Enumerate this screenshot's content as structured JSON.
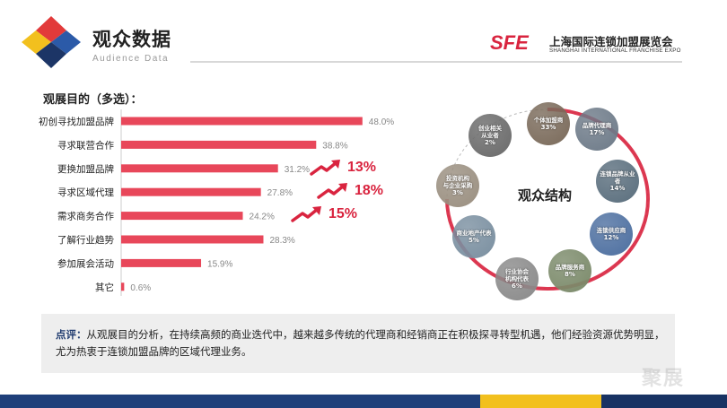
{
  "header": {
    "title": "观众数据",
    "subtitle": "Audience Data"
  },
  "brand": {
    "mark": "SFE",
    "name_cn": "上海国际连锁加盟展览会",
    "name_en": "SHANGHAI INTERNATIONAL FRANCHISE EXPO"
  },
  "colors": {
    "bar": "#e8475a",
    "accent_red": "#d9243f",
    "logo_red": "#e23a3a",
    "logo_yellow": "#f2c01e",
    "logo_blue": "#2b5aa8",
    "logo_navy": "#1c3566",
    "ring": "#d9243f",
    "footer_blue": "#1f3f7a",
    "footer_yellow": "#f2c01e",
    "footer_navy": "#183263"
  },
  "chart_data": {
    "type": "bar",
    "orientation": "horizontal",
    "title": "观展目的（多选）：",
    "categories": [
      "初创寻找加盟品牌",
      "寻求联营合作",
      "更换加盟品牌",
      "寻求区域代理",
      "需求商务合作",
      "了解行业趋势",
      "参加展会活动",
      "其它"
    ],
    "values": [
      48.0,
      38.8,
      31.2,
      27.8,
      24.2,
      28.3,
      15.9,
      0.6
    ],
    "value_labels": [
      "48.0%",
      "38.8%",
      "31.2%",
      "27.8%",
      "24.2%",
      "28.3%",
      "15.9%",
      "0.6%"
    ],
    "xlim": [
      0,
      50
    ],
    "grid": false,
    "annotations": [
      {
        "category": "更换加盟品牌",
        "text": "13%"
      },
      {
        "category": "寻求区域代理",
        "text": "18%"
      },
      {
        "category": "需求商务合作",
        "text": "15%"
      }
    ]
  },
  "diagram": {
    "center_label": "观众结构",
    "nodes": [
      {
        "lines": [
          "个体加盟商"
        ],
        "pct": "33%"
      },
      {
        "lines": [
          "品牌代理商"
        ],
        "pct": "17%"
      },
      {
        "lines": [
          "连锁品牌从业者"
        ],
        "pct": "14%"
      },
      {
        "lines": [
          "连锁供应商"
        ],
        "pct": "12%"
      },
      {
        "lines": [
          "品牌服务商"
        ],
        "pct": "8%"
      },
      {
        "lines": [
          "行业协会",
          "机构代表"
        ],
        "pct": "6%"
      },
      {
        "lines": [
          "商业地产代表"
        ],
        "pct": "5%"
      },
      {
        "lines": [
          "投资机构",
          "与企业采购"
        ],
        "pct": "3%"
      },
      {
        "lines": [
          "创业相关",
          "从业者"
        ],
        "pct": "2%"
      }
    ]
  },
  "comment": {
    "label": "点评：",
    "text": "从观展目的分析，在持续高频的商业迭代中，越来越多传统的代理商和经销商正在积极探寻转型机遇，他们经验资源优势明显，尤为热衷于连锁加盟品牌的区域代理业务。"
  },
  "watermark": "聚展"
}
